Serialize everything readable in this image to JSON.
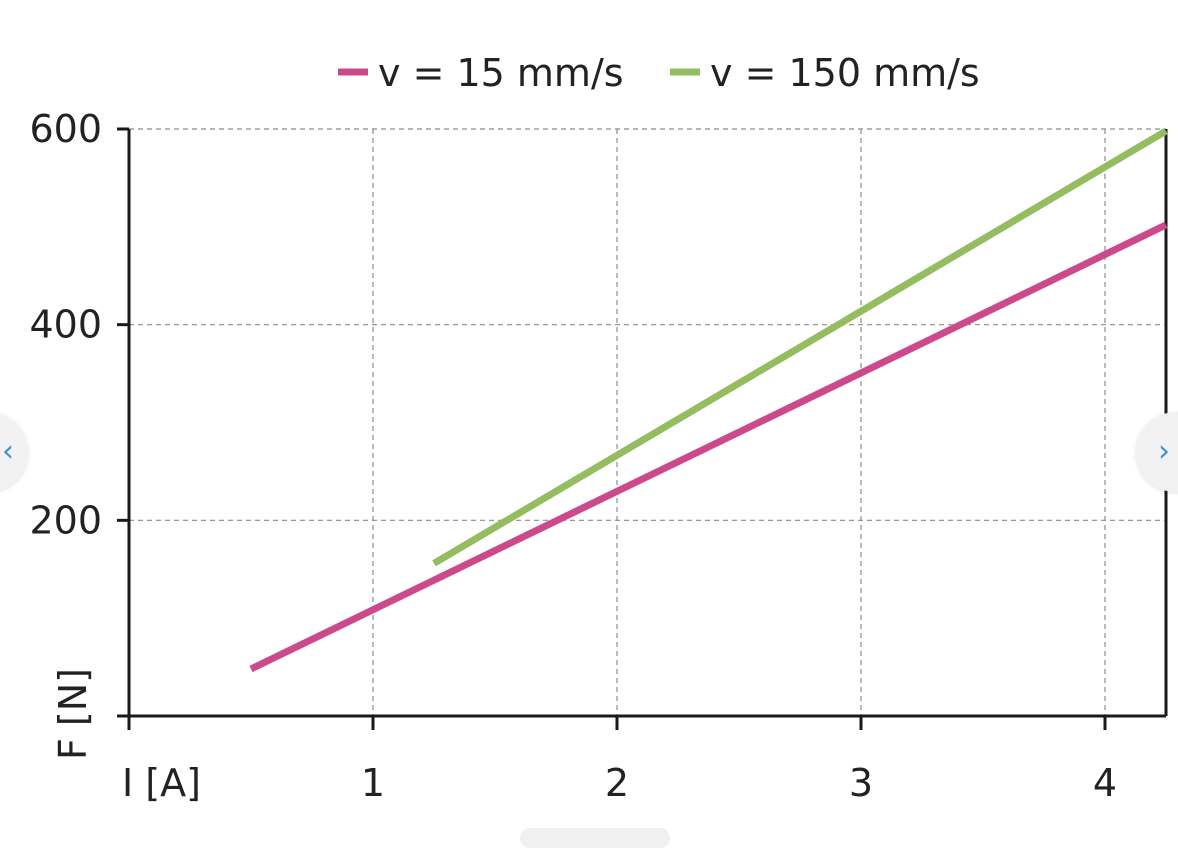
{
  "nav": {
    "prev_symbol": "‹",
    "next_symbol": "›"
  },
  "chart_data": {
    "type": "line",
    "title": "",
    "xlabel": "I [A]",
    "ylabel": "F [N]",
    "xlim": [
      0,
      4.25
    ],
    "ylim": [
      0,
      600
    ],
    "xticks": [
      1,
      2,
      3,
      4
    ],
    "yticks": [
      200,
      400,
      600
    ],
    "grid": true,
    "legend_position": "top",
    "series": [
      {
        "name": "v = 15 mm/s",
        "color": "#cc4a8c",
        "x": [
          0.5,
          4.25
        ],
        "y": [
          48,
          502
        ]
      },
      {
        "name": "v = 150 mm/s",
        "color": "#93bd5e",
        "x": [
          1.25,
          4.25
        ],
        "y": [
          156,
          598
        ]
      }
    ]
  }
}
